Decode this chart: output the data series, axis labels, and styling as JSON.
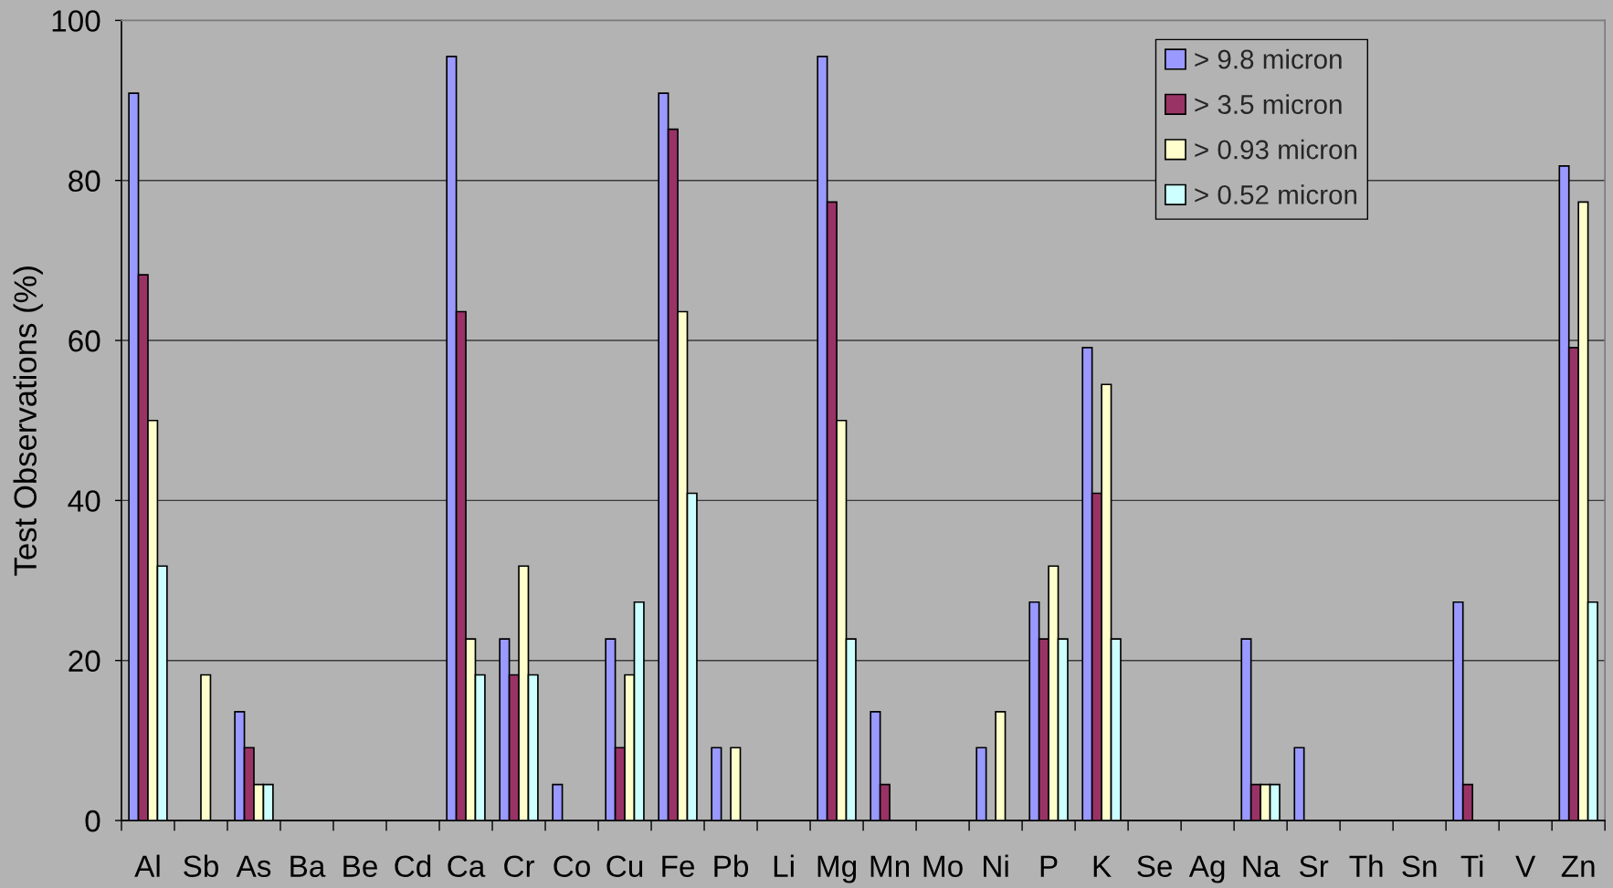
{
  "chart_data": {
    "type": "bar",
    "ylabel": "Test Observations (%)",
    "categories": [
      "Al",
      "Sb",
      "As",
      "Ba",
      "Be",
      "Cd",
      "Ca",
      "Cr",
      "Co",
      "Cu",
      "Fe",
      "Pb",
      "Li",
      "Mg",
      "Mn",
      "Mo",
      "Ni",
      "P",
      "K",
      "Se",
      "Ag",
      "Na",
      "Sr",
      "Th",
      "Sn",
      "Ti",
      "V",
      "Zn"
    ],
    "series": [
      {
        "name": "> 9.8 micron",
        "color": "#9999ff",
        "values": [
          90.9,
          null,
          13.6,
          null,
          null,
          null,
          95.5,
          22.7,
          4.5,
          22.7,
          90.9,
          9.1,
          null,
          95.5,
          13.6,
          null,
          9.1,
          27.3,
          59.1,
          null,
          null,
          22.7,
          9.1,
          null,
          null,
          27.3,
          null,
          81.8
        ]
      },
      {
        "name": "> 3.5 micron",
        "color": "#993366",
        "values": [
          68.2,
          null,
          9.1,
          null,
          null,
          null,
          63.6,
          18.2,
          null,
          9.1,
          86.4,
          null,
          null,
          77.3,
          4.5,
          null,
          null,
          22.7,
          40.9,
          null,
          null,
          4.5,
          null,
          null,
          null,
          4.5,
          null,
          59.1
        ]
      },
      {
        "name": "> 0.93 micron",
        "color": "#ffffcc",
        "values": [
          50.0,
          18.2,
          4.5,
          null,
          null,
          null,
          22.7,
          31.8,
          null,
          18.2,
          63.6,
          9.1,
          null,
          50.0,
          null,
          null,
          13.6,
          31.8,
          54.5,
          null,
          null,
          4.5,
          null,
          null,
          null,
          null,
          null,
          77.3
        ]
      },
      {
        "name": "> 0.52 micron",
        "color": "#ccffff",
        "values": [
          31.8,
          null,
          4.5,
          null,
          null,
          null,
          18.2,
          18.2,
          null,
          27.3,
          40.9,
          null,
          null,
          22.7,
          null,
          null,
          null,
          22.7,
          22.7,
          null,
          null,
          4.5,
          null,
          null,
          null,
          null,
          null,
          27.3
        ]
      }
    ],
    "ylim": [
      0,
      100
    ],
    "yticks": [
      0,
      20,
      40,
      60,
      80,
      100
    ],
    "grid": "y",
    "legend": "top right"
  }
}
